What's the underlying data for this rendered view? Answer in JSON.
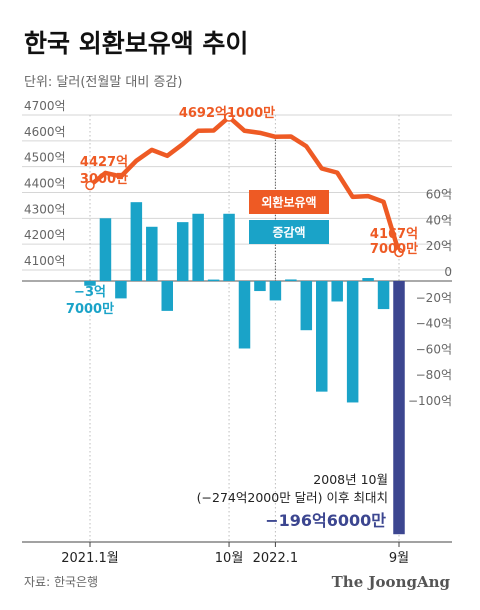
{
  "title": "한국 외환보유액 추이",
  "subtitle": "단위: 달러(전월말 대비 증감)",
  "source": "자료: 한국은행",
  "brand": "The JoongAng",
  "colors": {
    "line": "#ee5a24",
    "bar": "#1aa3c8",
    "bar_highlight": "#3c4690"
  },
  "legend": {
    "line_label": "외환보유액",
    "bar_label": "증감액"
  },
  "annotations": {
    "start_line": [
      "4427억",
      "3000만"
    ],
    "peak": "4692억1000만",
    "end_line": [
      "4167억",
      "7000만"
    ],
    "first_bar": [
      "−3억",
      "7000만"
    ],
    "note_line1": "2008년 10월",
    "note_line2": "(−274억2000만 달러) 이후 최대치",
    "last_bar": "−196억6000만"
  },
  "chart_data": {
    "type": "bar",
    "title": "한국 외환보유액 추이",
    "subtitle": "단위: 달러(전월말 대비 증감)",
    "x": [
      "2021.1",
      "2021.2",
      "2021.3",
      "2021.4",
      "2021.5",
      "2021.6",
      "2021.7",
      "2021.8",
      "2021.9",
      "2021.10",
      "2021.11",
      "2021.12",
      "2022.1",
      "2022.2",
      "2022.3",
      "2022.4",
      "2022.5",
      "2022.6",
      "2022.7",
      "2022.8",
      "2022.9"
    ],
    "x_tick_labels": [
      {
        "at": "2021.1",
        "label": "2021.1월"
      },
      {
        "at": "2021.10",
        "label": "10월"
      },
      {
        "at": "2022.1",
        "label": "2022.1"
      },
      {
        "at": "2022.9",
        "label": "9월"
      }
    ],
    "series": [
      {
        "name": "외환보유액",
        "type": "line",
        "unit": "억 달러",
        "axis": "left",
        "values": [
          4427.3,
          4476,
          4462,
          4523,
          4565,
          4542,
          4587,
          4639,
          4640,
          4692.1,
          4639,
          4631,
          4615.8,
          4617,
          4579,
          4493,
          4477,
          4383,
          4386,
          4364,
          4167.7
        ]
      },
      {
        "name": "증감액",
        "type": "bar",
        "unit": "억 달러",
        "axis": "right",
        "values": [
          -3.7,
          48.7,
          -13.5,
          61.2,
          42.1,
          -23.2,
          45.7,
          52.2,
          1.1,
          52.2,
          -52.4,
          -7.8,
          -15.1,
          1.2,
          -38.2,
          -85.9,
          -15.9,
          -94.3,
          2.3,
          -21.8,
          -196.6
        ]
      }
    ],
    "y_left": {
      "ticks": [
        4100,
        4200,
        4300,
        4400,
        4500,
        4600,
        4700
      ],
      "tick_labels": [
        "4100억",
        "4200억",
        "4300억",
        "4400억",
        "4500억",
        "4600억",
        "4700억"
      ],
      "ylim": [
        4100,
        4700
      ]
    },
    "y_right": {
      "ticks": [
        60,
        40,
        20,
        0,
        -20,
        -40,
        -60,
        -80,
        -100
      ],
      "tick_labels": [
        "60억",
        "40억",
        "20억",
        "0",
        "−20억",
        "−40억",
        "−60억",
        "−80억",
        "−100억"
      ],
      "ylim": [
        -196.6,
        60
      ]
    },
    "grid": true,
    "legend": "center-right"
  }
}
